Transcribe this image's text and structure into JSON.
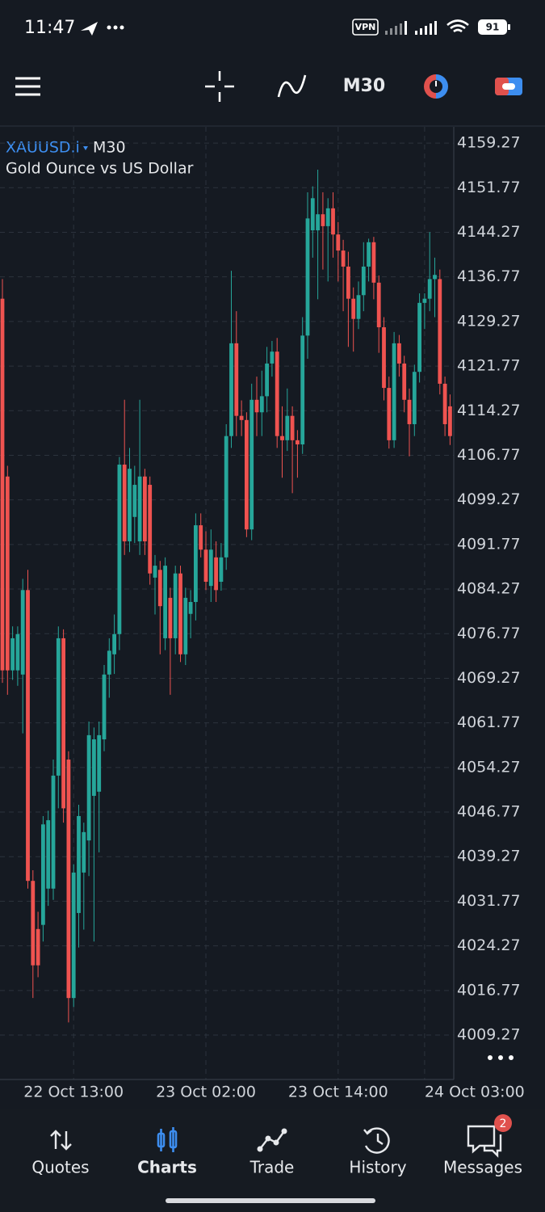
{
  "status_bar": {
    "time": "11:47",
    "vpn": "VPN",
    "battery": "91"
  },
  "toolbar": {
    "timeframe": "M30"
  },
  "chart_data": {
    "type": "candlestick",
    "symbol": "XAUUSD.i",
    "timeframe": "M30",
    "description": "Gold Ounce vs US Dollar",
    "categories": [
      null,
      null,
      null,
      null,
      null,
      null,
      null,
      null,
      null,
      null,
      null,
      null,
      null,
      null,
      "22 Oct 13:00",
      null,
      null,
      null,
      null,
      null,
      null,
      null,
      null,
      null,
      null,
      null,
      null,
      null,
      null,
      null,
      null,
      null,
      null,
      null,
      null,
      null,
      null,
      null,
      null,
      null,
      "23 Oct 02:00",
      null,
      null,
      null,
      null,
      null,
      null,
      null,
      null,
      null,
      null,
      null,
      null,
      null,
      null,
      null,
      null,
      null,
      null,
      null,
      null,
      null,
      null,
      null,
      null,
      null,
      "23 Oct 14:00",
      null,
      null,
      null,
      null,
      null,
      null,
      null,
      null,
      null,
      null,
      null,
      null,
      null,
      null,
      null,
      null,
      "24 Oct 03:00",
      null,
      null,
      null,
      null,
      null
    ],
    "open": [
      4133.1,
      4103.2,
      4070.6,
      4070.6,
      4069.9,
      4084.1,
      4035.2,
      4027.1,
      4027.8,
      4033.9,
      4033.9,
      4052.9,
      4076.0,
      4055.6,
      4015.5,
      4029.8,
      4036.6,
      4042.0,
      4049.5,
      4050.2,
      4059.0,
      4069.9,
      4073.3,
      4076.7,
      4105.2,
      4092.3,
      4096.4,
      4092.3,
      4103.2,
      4101.8,
      4086.2,
      4087.5,
      4076.0,
      4082.8,
      4076.0,
      4086.9,
      4073.3,
      4080.1,
      4082.1,
      4095.0,
      4090.9,
      4084.8,
      4089.6,
      4085.5,
      4089.6,
      4110.0,
      4125.6,
      4113.4,
      4112.7,
      4094.3,
      4116.1,
      4114.0,
      4116.7,
      4122.2,
      4124.2,
      4110.0,
      4109.3,
      4113.4,
      4109.3,
      4108.6,
      4126.9,
      4144.6,
      4144.6,
      4147.3,
      4145.3,
      4148.3,
      4143.9,
      4141.2,
      4138.5,
      4133.1,
      4129.7,
      4133.7,
      4138.5,
      4142.6,
      4135.8,
      4128.3,
      4118.1,
      4109.3,
      4125.6,
      4122.2,
      4116.1,
      4112.0,
      4120.8,
      4132.4,
      4133.1,
      4136.4,
      4136.4,
      4118.8,
      4115.0
    ],
    "high": [
      4136.4,
      4105.0,
      4078.0,
      4078.0,
      4086.0,
      4087.5,
      4037.0,
      4030.0,
      4046.1,
      4047.0,
      4055.6,
      4078.0,
      4077.5,
      4057.0,
      4038.0,
      4048.0,
      4045.0,
      4062.0,
      4061.0,
      4062.0,
      4071.5,
      4076.0,
      4080.0,
      4106.5,
      4116.1,
      4108.0,
      4105.0,
      4116.1,
      4104.5,
      4103.2,
      4090.0,
      4089.0,
      4089.6,
      4084.5,
      4088.2,
      4088.2,
      4084.5,
      4084.1,
      4097.0,
      4097.0,
      4094.0,
      4094.3,
      4092.3,
      4092.0,
      4112.0,
      4137.8,
      4131.0,
      4116.0,
      4114.0,
      4118.8,
      4120.0,
      4121.0,
      4125.0,
      4126.0,
      4126.5,
      4115.0,
      4118.0,
      4115.0,
      4111.0,
      4130.0,
      4151.0,
      4152.0,
      4154.8,
      4151.0,
      4150.0,
      4151.0,
      4146.0,
      4143.0,
      4141.0,
      4135.0,
      4136.0,
      4142.6,
      4143.2,
      4143.5,
      4137.0,
      4130.0,
      4120.0,
      4127.5,
      4127.0,
      4123.5,
      4118.0,
      4122.0,
      4134.0,
      4134.0,
      4144.3,
      4140.0,
      4138.0,
      4120.0,
      4117.0
    ],
    "low": [
      4068.5,
      4066.5,
      4069.0,
      4068.0,
      4060.0,
      4033.9,
      4015.5,
      4019.0,
      4025.0,
      4031.0,
      4032.0,
      4047.4,
      4045.0,
      4011.4,
      4014.0,
      4024.0,
      4027.0,
      4036.0,
      4025.0,
      4040.0,
      4057.0,
      4066.0,
      4070.0,
      4074.0,
      4090.0,
      4090.5,
      4092.0,
      4090.0,
      4090.0,
      4085.0,
      4080.0,
      4073.3,
      4074.0,
      4066.5,
      4073.3,
      4072.0,
      4071.5,
      4076.0,
      4079.0,
      4089.6,
      4084.1,
      4082.1,
      4082.1,
      4084.0,
      4087.5,
      4108.0,
      4110.0,
      4110.0,
      4093.0,
      4092.5,
      4110.0,
      4110.0,
      4114.0,
      4120.0,
      4108.0,
      4103.0,
      4107.5,
      4100.4,
      4103.0,
      4107.0,
      4123.0,
      4140.0,
      4133.0,
      4138.0,
      4136.0,
      4140.0,
      4136.0,
      4131.0,
      4125.0,
      4124.2,
      4128.0,
      4131.0,
      4136.0,
      4133.0,
      4124.0,
      4116.0,
      4107.9,
      4108.0,
      4120.0,
      4114.0,
      4106.6,
      4110.0,
      4119.0,
      4128.0,
      4131.0,
      4130.0,
      4117.0,
      4110.0,
      4108.5
    ],
    "close": [
      4070.6,
      4070.6,
      4076.0,
      4076.7,
      4084.1,
      4035.2,
      4021.0,
      4021.0,
      4044.7,
      4045.4,
      4052.9,
      4076.0,
      4047.4,
      4015.5,
      4036.6,
      4046.1,
      4043.4,
      4059.7,
      4059.0,
      4059.7,
      4069.9,
      4073.9,
      4076.7,
      4105.2,
      4092.3,
      4104.5,
      4101.8,
      4103.2,
      4092.3,
      4086.9,
      4088.2,
      4081.4,
      4088.2,
      4076.0,
      4086.9,
      4073.3,
      4082.8,
      4082.1,
      4095.0,
      4090.9,
      4085.5,
      4090.9,
      4084.1,
      4089.6,
      4110.0,
      4125.6,
      4113.4,
      4112.7,
      4094.3,
      4116.1,
      4114.0,
      4116.7,
      4122.2,
      4124.2,
      4110.0,
      4109.3,
      4113.4,
      4109.3,
      4108.6,
      4126.9,
      4146.6,
      4150.0,
      4147.3,
      4145.3,
      4148.3,
      4143.9,
      4141.2,
      4138.5,
      4133.1,
      4129.7,
      4133.7,
      4138.5,
      4142.6,
      4135.8,
      4128.3,
      4118.1,
      4109.3,
      4125.6,
      4122.2,
      4116.1,
      4112.0,
      4120.8,
      4132.4,
      4133.1,
      4136.4,
      4137.1,
      4118.8,
      4112.0,
      4110.0
    ],
    "up_color": "#26a69a",
    "down_color": "#ef5350",
    "ylim": [
      4001.8,
      4162.0
    ],
    "yticks": [
      4159.27,
      4151.77,
      4144.27,
      4136.77,
      4129.27,
      4121.77,
      4114.27,
      4106.77,
      4099.27,
      4091.77,
      4084.27,
      4076.77,
      4069.27,
      4061.77,
      4054.27,
      4046.77,
      4039.27,
      4031.77,
      4024.27,
      4016.77,
      4009.27
    ],
    "grid": true
  },
  "nav": {
    "items": [
      "Quotes",
      "Charts",
      "Trade",
      "History",
      "Messages"
    ],
    "active": 1,
    "badge": "2"
  }
}
